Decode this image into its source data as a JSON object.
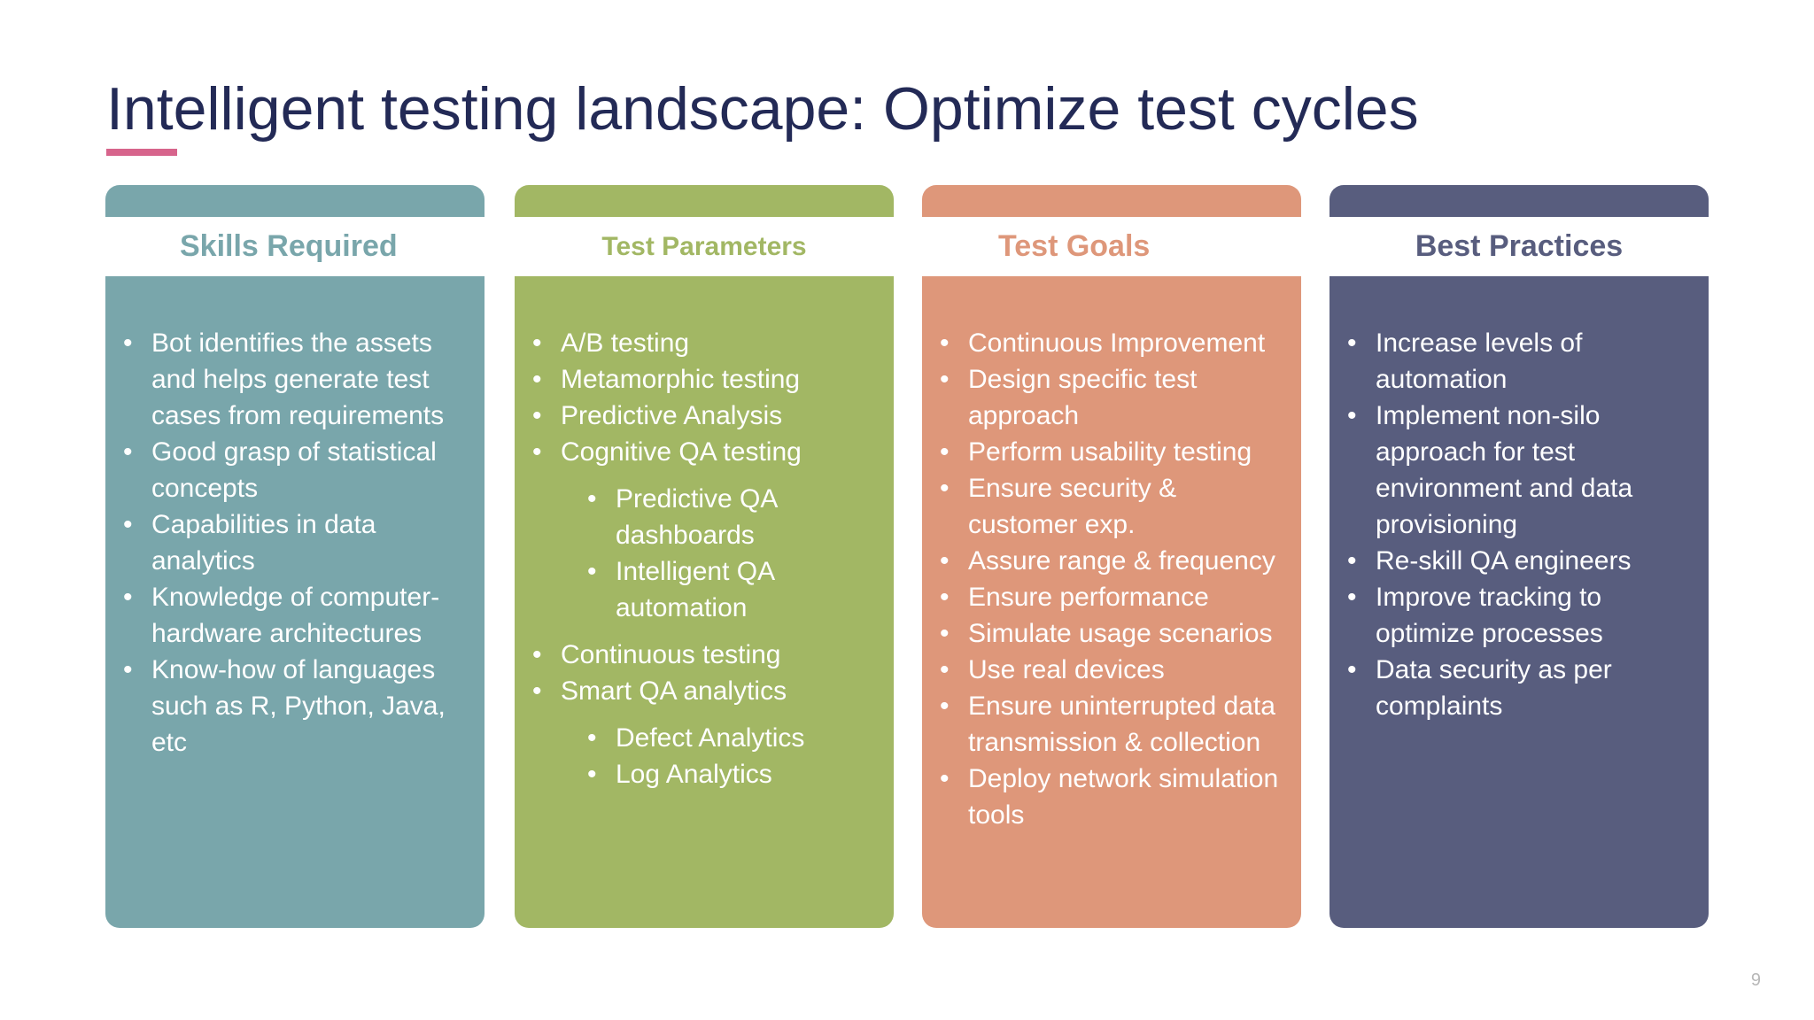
{
  "slide": {
    "title": "Intelligent testing landscape: Optimize test cycles",
    "page_number": "9"
  },
  "colors": {
    "title": "#232a56",
    "accent": "#d7648c",
    "skills": "#79a6ab",
    "parameters": "#a2b764",
    "goals": "#de977a",
    "practices": "#585d7e"
  },
  "cards": {
    "skills": {
      "title": "Skills Required",
      "items": [
        "Bot identifies the assets and helps generate test cases from requirements",
        "Good grasp of statistical concepts",
        "Capabilities in data analytics",
        "Knowledge of computer-hardware architectures",
        "Know-how of languages such as R, Python, Java, etc"
      ]
    },
    "parameters": {
      "title": "Test Parameters",
      "items": [
        "A/B testing",
        "Metamorphic testing",
        "Predictive Analysis",
        "Cognitive QA testing",
        "Predictive QA dashboards",
        "Intelligent QA automation",
        "Continuous testing",
        "Smart QA analytics",
        "Defect Analytics",
        "Log Analytics"
      ]
    },
    "goals": {
      "title": "Test Goals",
      "items": [
        "Continuous Improvement",
        "Design specific test approach",
        "Perform usability testing",
        "Ensure security & customer exp.",
        "Assure range & frequency",
        "Ensure performance",
        "Simulate usage scenarios",
        "Use real devices",
        "Ensure uninterrupted data transmission & collection",
        "Deploy network simulation tools"
      ]
    },
    "practices": {
      "title": "Best Practices",
      "items": [
        "Increase levels of automation",
        "Implement non-silo approach for test environment and data provisioning",
        "Re-skill QA engineers",
        "Improve tracking to optimize processes",
        "Data security as per complaints"
      ]
    }
  }
}
